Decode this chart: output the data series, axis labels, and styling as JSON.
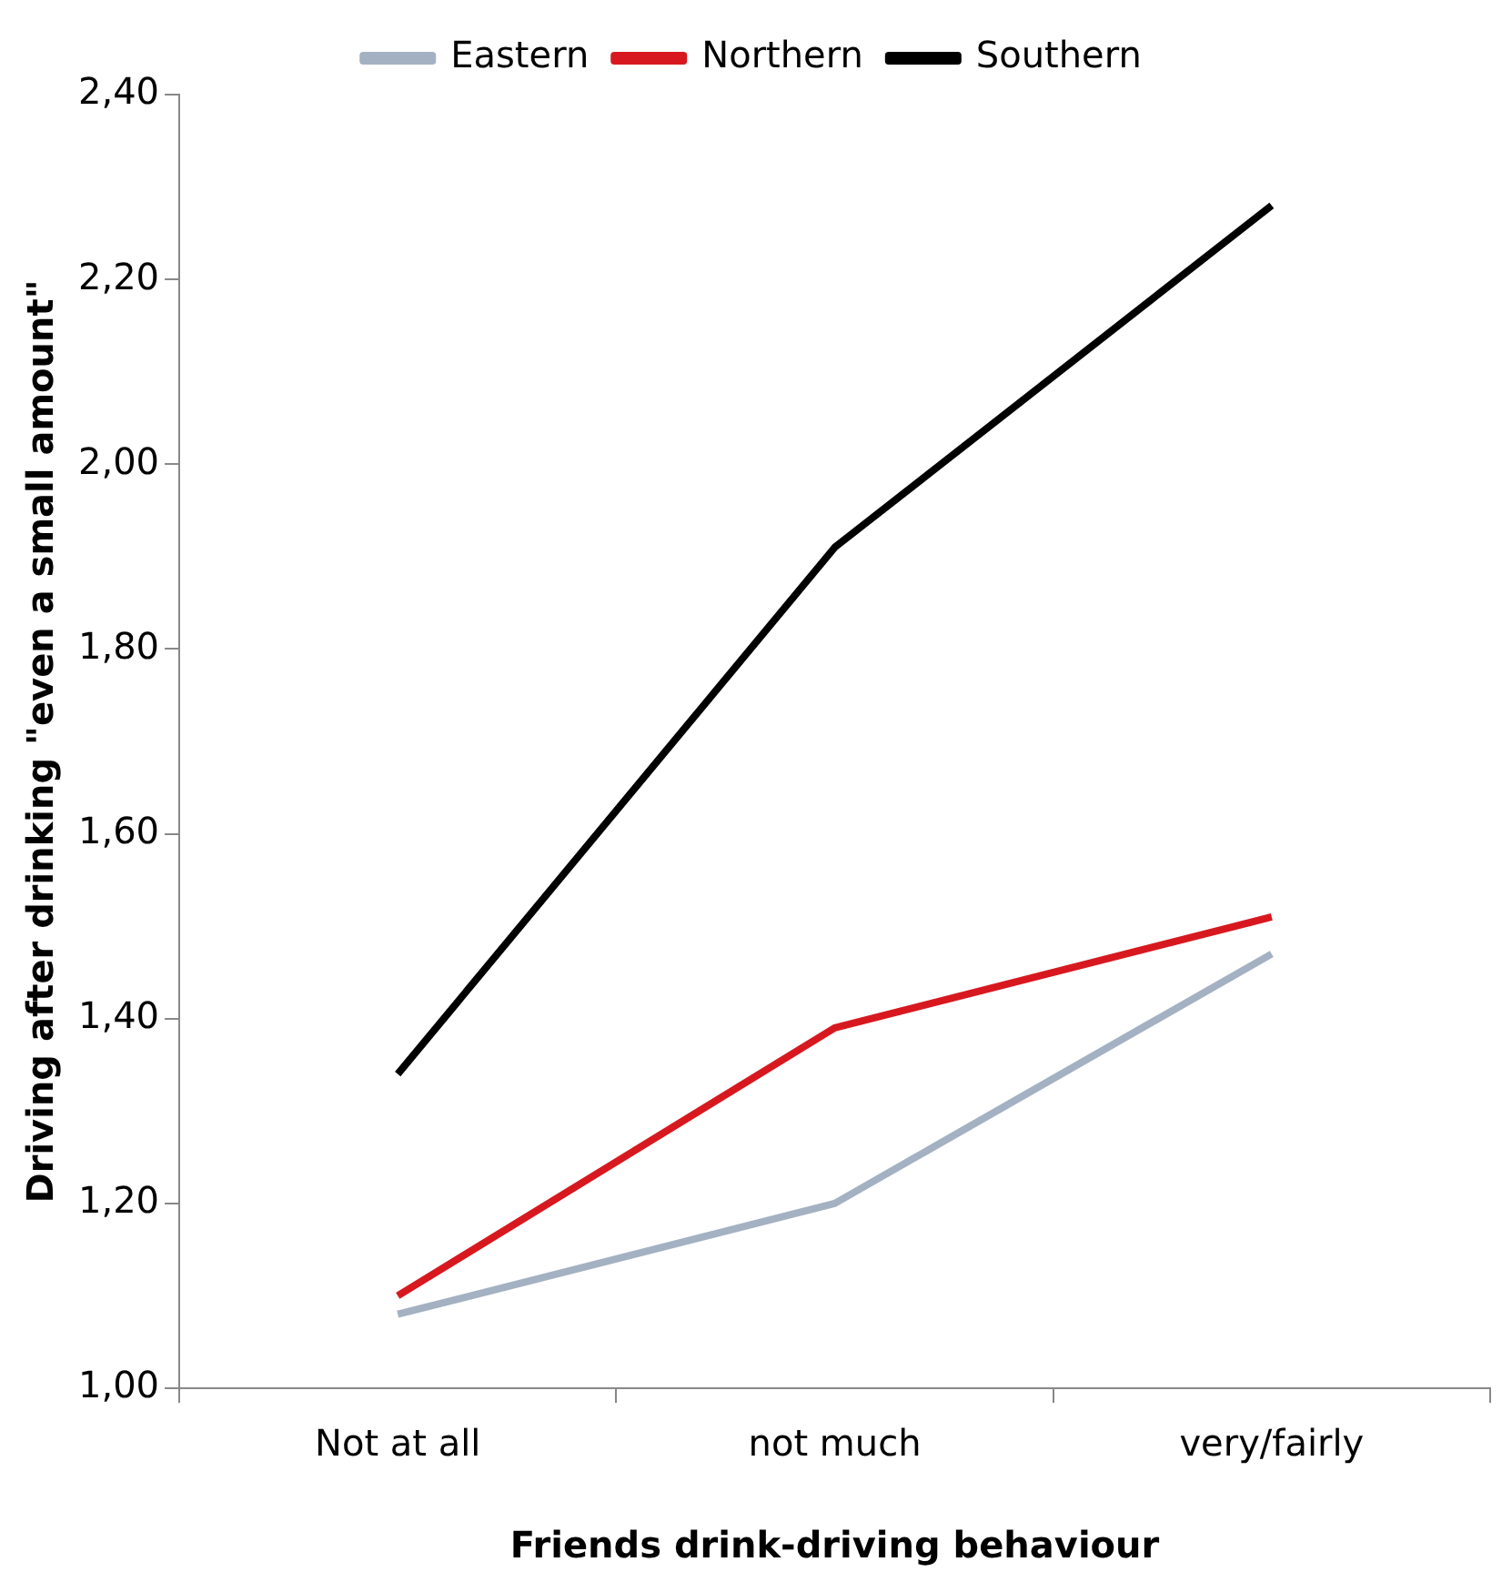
{
  "chart_data": {
    "type": "line",
    "xlabel": "Friends drink-driving behaviour",
    "ylabel": "Driving after drinking \"even a small amount\"",
    "categories": [
      "Not at all",
      "not much",
      "very/fairly"
    ],
    "series": [
      {
        "name": "Eastern",
        "color": "#a3b1c2",
        "values": [
          1.08,
          1.2,
          1.47
        ]
      },
      {
        "name": "Northern",
        "color": "#d7191f",
        "values": [
          1.1,
          1.39,
          1.51
        ]
      },
      {
        "name": "Southern",
        "color": "#000000",
        "values": [
          1.34,
          1.91,
          2.28
        ]
      }
    ],
    "ylim": [
      1,
      2.4
    ],
    "yticks": [
      {
        "value": 1,
        "label": "1,00"
      },
      {
        "value": 1.2,
        "label": "1,20"
      },
      {
        "value": 1.4,
        "label": "1,40"
      },
      {
        "value": 1.6,
        "label": "1,60"
      },
      {
        "value": 1.8,
        "label": "1,80"
      },
      {
        "value": 2,
        "label": "2,00"
      },
      {
        "value": 2.2,
        "label": "2,20"
      },
      {
        "value": 2.4,
        "label": "2,40"
      }
    ],
    "grid": false,
    "legend": "top",
    "marker": "none",
    "line_style": "solid"
  }
}
